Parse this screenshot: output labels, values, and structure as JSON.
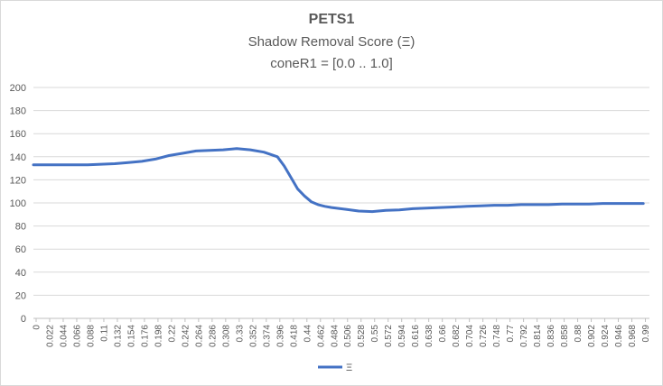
{
  "chart_data": {
    "type": "line",
    "title": "PETS1",
    "subtitle_lines": [
      "Shadow Removal Score (Ξ)",
      "coneR1 = [0.0 .. 1.0]"
    ],
    "xlabel": "",
    "ylabel": "",
    "ylim": [
      0,
      200
    ],
    "yticks": [
      0,
      20,
      40,
      60,
      80,
      100,
      120,
      140,
      160,
      180,
      200
    ],
    "xtick_labels": [
      "0",
      "0.022",
      "0.044",
      "0.066",
      "0.088",
      "0.11",
      "0.132",
      "0.154",
      "0.176",
      "0.198",
      "0.22",
      "0.242",
      "0.264",
      "0.286",
      "0.308",
      "0.33",
      "0.352",
      "0.374",
      "0.396",
      "0.418",
      "0.44",
      "0.462",
      "0.484",
      "0.506",
      "0.528",
      "0.55",
      "0.572",
      "0.594",
      "0.616",
      "0.638",
      "0.66",
      "0.682",
      "0.704",
      "0.726",
      "0.748",
      "0.77",
      "0.792",
      "0.814",
      "0.836",
      "0.858",
      "0.88",
      "0.902",
      "0.924",
      "0.946",
      "0.968",
      "0.99"
    ],
    "grid": true,
    "legend_position": "bottom",
    "series": [
      {
        "name": "Ξ",
        "color": "#4472c4",
        "x": [
          0,
          0.05,
          0.088,
          0.11,
          0.132,
          0.154,
          0.176,
          0.198,
          0.22,
          0.242,
          0.264,
          0.286,
          0.308,
          0.33,
          0.352,
          0.374,
          0.396,
          0.407,
          0.418,
          0.429,
          0.44,
          0.451,
          0.462,
          0.473,
          0.484,
          0.506,
          0.528,
          0.55,
          0.572,
          0.594,
          0.616,
          0.638,
          0.66,
          0.682,
          0.704,
          0.726,
          0.748,
          0.77,
          0.792,
          0.814,
          0.836,
          0.858,
          0.88,
          0.902,
          0.924,
          0.946,
          0.968,
          0.99
        ],
        "y": [
          133,
          133,
          133,
          133.5,
          134,
          135,
          136,
          138,
          141,
          143,
          145,
          145.5,
          146,
          147,
          146,
          144,
          140,
          132,
          122,
          112,
          106,
          101,
          98.5,
          97,
          96,
          94.5,
          93,
          92.5,
          93.5,
          94,
          95,
          95.5,
          96,
          96.5,
          97,
          97.5,
          98,
          98,
          98.5,
          98.5,
          98.5,
          99,
          99,
          99,
          99.5,
          99.5,
          99.5,
          99.5
        ]
      }
    ]
  }
}
